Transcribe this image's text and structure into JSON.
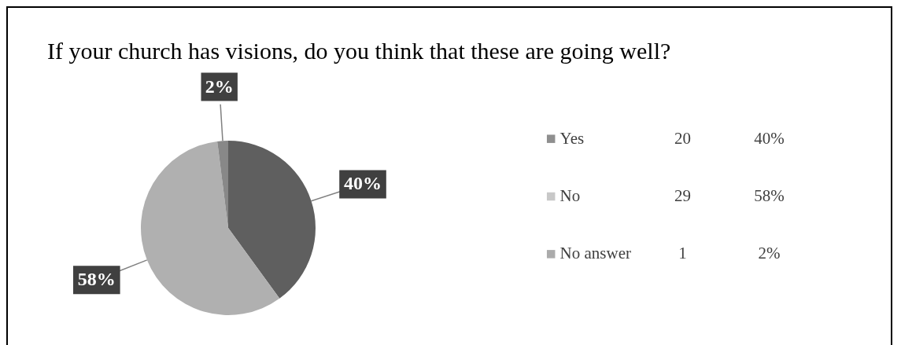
{
  "chart_data": {
    "type": "pie",
    "title": "If your church has visions, do you think that these are going well?",
    "categories": [
      "Yes",
      "No",
      "No answer"
    ],
    "values": [
      40,
      58,
      2
    ],
    "value_labels": [
      "40%",
      "58%",
      "2%"
    ],
    "annotations": [
      "20",
      "40%",
      "29",
      "58%",
      "1",
      "2%"
    ],
    "colors": [
      "#5f5f5f",
      "#b0b0b0",
      "#888888"
    ],
    "legend": "right"
  }
}
